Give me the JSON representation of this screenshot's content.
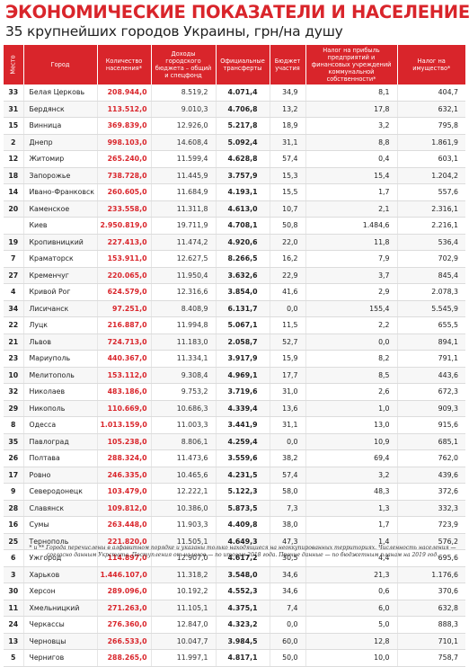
{
  "title": "ЭКОНОМИЧЕСКИЕ ПОКАЗАТЕЛИ И НАСЕЛЕНИЕ",
  "subtitle": "35 крупнейших городов Украины, грн/на душу",
  "columns": {
    "rank": "Место",
    "city": "Город",
    "population": "Количество населения*",
    "budget": "Доходы городского бюджета – общий и спецфонд",
    "transfers": "Официальные трансферты",
    "share": "Бюджет участия",
    "profit_tax": "Налог на прибыль предприятий и финансовых учреждений коммунальной собственности*",
    "property_tax": "Налог на имущество*"
  },
  "rows": [
    {
      "rank": "33",
      "city": "Белая Церковь",
      "population": "208.944,0",
      "budget": "8.519,2",
      "transfers": "4.071,4",
      "share": "34,9",
      "profit_tax": "8,1",
      "property_tax": "404,7"
    },
    {
      "rank": "31",
      "city": "Бердянск",
      "population": "113.512,0",
      "budget": "9.010,3",
      "transfers": "4.706,8",
      "share": "13,2",
      "profit_tax": "17,8",
      "property_tax": "632,1"
    },
    {
      "rank": "15",
      "city": "Винница",
      "population": "369.839,0",
      "budget": "12.926,0",
      "transfers": "5.217,8",
      "share": "18,9",
      "profit_tax": "3,2",
      "property_tax": "795,8"
    },
    {
      "rank": "2",
      "city": "Днепр",
      "population": "998.103,0",
      "budget": "14.608,4",
      "transfers": "5.092,4",
      "share": "31,1",
      "profit_tax": "8,8",
      "property_tax": "1.861,9"
    },
    {
      "rank": "12",
      "city": "Житомир",
      "population": "265.240,0",
      "budget": "11.599,4",
      "transfers": "4.628,8",
      "share": "57,4",
      "profit_tax": "0,4",
      "property_tax": "603,1"
    },
    {
      "rank": "18",
      "city": "Запорожье",
      "population": "738.728,0",
      "budget": "11.445,9",
      "transfers": "3.757,9",
      "share": "15,3",
      "profit_tax": "15,4",
      "property_tax": "1.204,2"
    },
    {
      "rank": "14",
      "city": "Ивано-Франковск",
      "population": "260.605,0",
      "budget": "11.684,9",
      "transfers": "4.193,1",
      "share": "15,5",
      "profit_tax": "1,7",
      "property_tax": "557,6"
    },
    {
      "rank": "20",
      "city": "Каменское",
      "population": "233.558,0",
      "budget": "11.311,8",
      "transfers": "4.613,0",
      "share": "10,7",
      "profit_tax": "2,1",
      "property_tax": "2.316,1"
    },
    {
      "rank": "",
      "city": "Киев",
      "population": "2.950.819,0",
      "budget": "19.711,9",
      "transfers": "4.708,1",
      "share": "50,8",
      "profit_tax": "1.484,6",
      "property_tax": "2.216,1"
    },
    {
      "rank": "19",
      "city": "Кропивницкий",
      "population": "227.413,0",
      "budget": "11.474,2",
      "transfers": "4.920,6",
      "share": "22,0",
      "profit_tax": "11,8",
      "property_tax": "536,4"
    },
    {
      "rank": "7",
      "city": "Краматорск",
      "population": "153.911,0",
      "budget": "12.627,5",
      "transfers": "8.266,5",
      "share": "16,2",
      "profit_tax": "7,9",
      "property_tax": "702,9"
    },
    {
      "rank": "27",
      "city": "Кременчуг",
      "population": "220.065,0",
      "budget": "11.950,4",
      "transfers": "3.632,6",
      "share": "22,9",
      "profit_tax": "3,7",
      "property_tax": "845,4"
    },
    {
      "rank": "4",
      "city": "Кривой Рог",
      "population": "624.579,0",
      "budget": "12.316,6",
      "transfers": "3.854,0",
      "share": "41,6",
      "profit_tax": "2,9",
      "property_tax": "2.078,3"
    },
    {
      "rank": "34",
      "city": "Лисичанск",
      "population": "97.251,0",
      "budget": "8.408,9",
      "transfers": "6.131,7",
      "share": "0,0",
      "profit_tax": "155,4",
      "property_tax": "5.545,9"
    },
    {
      "rank": "22",
      "city": "Луцк",
      "population": "216.887,0",
      "budget": "11.994,8",
      "transfers": "5.067,1",
      "share": "11,5",
      "profit_tax": "2,2",
      "property_tax": "655,5"
    },
    {
      "rank": "21",
      "city": "Львов",
      "population": "724.713,0",
      "budget": "11.183,0",
      "transfers": "2.058,7",
      "share": "52,7",
      "profit_tax": "0,0",
      "property_tax": "894,1"
    },
    {
      "rank": "23",
      "city": "Мариуполь",
      "population": "440.367,0",
      "budget": "11.334,1",
      "transfers": "3.917,9",
      "share": "15,9",
      "profit_tax": "8,2",
      "property_tax": "791,1"
    },
    {
      "rank": "10",
      "city": "Мелитополь",
      "population": "153.112,0",
      "budget": "9.308,4",
      "transfers": "4.969,1",
      "share": "17,7",
      "profit_tax": "8,5",
      "property_tax": "443,6"
    },
    {
      "rank": "32",
      "city": "Николаев",
      "population": "483.186,0",
      "budget": "9.753,2",
      "transfers": "3.719,6",
      "share": "31,0",
      "profit_tax": "2,6",
      "property_tax": "672,3"
    },
    {
      "rank": "29",
      "city": "Никополь",
      "population": "110.669,0",
      "budget": "10.686,3",
      "transfers": "4.339,4",
      "share": "13,6",
      "profit_tax": "1,0",
      "property_tax": "909,3"
    },
    {
      "rank": "8",
      "city": "Одесса",
      "population": "1.013.159,0",
      "budget": "11.003,3",
      "transfers": "3.441,9",
      "share": "31,1",
      "profit_tax": "13,0",
      "property_tax": "915,6"
    },
    {
      "rank": "35",
      "city": "Павлоград",
      "population": "105.238,0",
      "budget": "8.806,1",
      "transfers": "4.259,4",
      "share": "0,0",
      "profit_tax": "10,9",
      "property_tax": "685,1"
    },
    {
      "rank": "26",
      "city": "Полтава",
      "population": "288.324,0",
      "budget": "11.473,6",
      "transfers": "3.559,6",
      "share": "38,2",
      "profit_tax": "69,4",
      "property_tax": "762,0"
    },
    {
      "rank": "17",
      "city": "Ровно",
      "population": "246.335,0",
      "budget": "10.465,6",
      "transfers": "4.231,5",
      "share": "57,4",
      "profit_tax": "3,2",
      "property_tax": "439,6"
    },
    {
      "rank": "9",
      "city": "Северодонецк",
      "population": "103.479,0",
      "budget": "12.222,1",
      "transfers": "5.122,3",
      "share": "58,0",
      "profit_tax": "48,3",
      "property_tax": "372,6"
    },
    {
      "rank": "28",
      "city": "Славянск",
      "population": "109.812,0",
      "budget": "10.386,0",
      "transfers": "5.873,5",
      "share": "7,3",
      "profit_tax": "1,3",
      "property_tax": "332,3"
    },
    {
      "rank": "16",
      "city": "Сумы",
      "population": "263.448,0",
      "budget": "11.903,3",
      "transfers": "4.409,8",
      "share": "38,0",
      "profit_tax": "1,7",
      "property_tax": "723,9"
    },
    {
      "rank": "25",
      "city": "Тернополь",
      "population": "221.820,0",
      "budget": "11.505,1",
      "transfers": "4.649,3",
      "share": "47,3",
      "profit_tax": "1,4",
      "property_tax": "576,2"
    },
    {
      "rank": "6",
      "city": "Ужгород",
      "population": "114.897,0",
      "budget": "12.907,0",
      "transfers": "4.617,2",
      "share": "30,5",
      "profit_tax": "4,4",
      "property_tax": "695,6"
    },
    {
      "rank": "3",
      "city": "Харьков",
      "population": "1.446.107,0",
      "budget": "11.318,2",
      "transfers": "3.548,0",
      "share": "34,6",
      "profit_tax": "21,3",
      "property_tax": "1.176,6"
    },
    {
      "rank": "30",
      "city": "Херсон",
      "population": "289.096,0",
      "budget": "10.192,2",
      "transfers": "4.552,3",
      "share": "34,6",
      "profit_tax": "0,6",
      "property_tax": "370,6"
    },
    {
      "rank": "11",
      "city": "Хмельницкий",
      "population": "271.263,0",
      "budget": "11.105,1",
      "transfers": "4.375,1",
      "share": "7,4",
      "profit_tax": "6,0",
      "property_tax": "632,8"
    },
    {
      "rank": "24",
      "city": "Черкассы",
      "population": "276.360,0",
      "budget": "12.847,0",
      "transfers": "4.323,2",
      "share": "0,0",
      "profit_tax": "5,0",
      "property_tax": "888,3"
    },
    {
      "rank": "13",
      "city": "Черновцы",
      "population": "266.533,0",
      "budget": "10.047,7",
      "transfers": "3.984,5",
      "share": "60,0",
      "profit_tax": "12,8",
      "property_tax": "710,1"
    },
    {
      "rank": "5",
      "city": "Чернигов",
      "population": "288.265,0",
      "budget": "11.997,1",
      "transfers": "4.817,1",
      "share": "50,0",
      "profit_tax": "10,0",
      "property_tax": "758,7"
    }
  ],
  "footnote": "* и ** Города перечислены в алфавитном порядке и указаны только находящиеся на неоккупированных территориях. Численность населения — согласно данным Укрстата. Поступления от налогов — по итогам 2018 года. Прочие данные — по бюджетным планам на 2019 год.",
  "colors": {
    "accent": "#d9252b",
    "header_text": "#ffffff"
  }
}
